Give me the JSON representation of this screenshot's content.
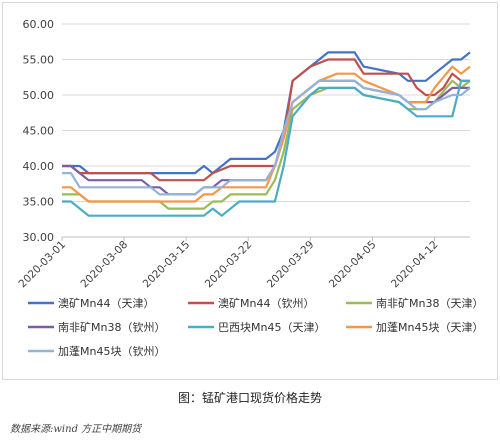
{
  "caption": "图：锰矿港口现货价格走势",
  "source": "数据来源:wind  方正中期期货",
  "chart_data": {
    "type": "line",
    "title": "",
    "xlabel": "",
    "ylabel": "",
    "ylim": [
      30,
      60
    ],
    "yticks": [
      "30.00",
      "35.00",
      "40.00",
      "45.00",
      "50.00",
      "55.00",
      "60.00"
    ],
    "x_start": "2020-03-01",
    "x_end": "2020-04-16",
    "x_ticks": [
      "2020-03-01",
      "2020-03-08",
      "2020-03-15",
      "2020-03-22",
      "2020-03-29",
      "2020-04-05",
      "2020-04-12"
    ],
    "grid": true,
    "legend_position": "bottom",
    "series": [
      {
        "name": "澳矿Mn44（天津）",
        "color": "#4472c4",
        "points": [
          [
            "2020-03-01",
            40
          ],
          [
            "2020-03-03",
            40
          ],
          [
            "2020-03-04",
            39
          ],
          [
            "2020-03-16",
            39
          ],
          [
            "2020-03-17",
            40
          ],
          [
            "2020-03-18",
            39
          ],
          [
            "2020-03-19",
            40
          ],
          [
            "2020-03-20",
            41
          ],
          [
            "2020-03-24",
            41
          ],
          [
            "2020-03-25",
            42
          ],
          [
            "2020-03-26",
            45
          ],
          [
            "2020-03-27",
            52
          ],
          [
            "2020-03-29",
            54
          ],
          [
            "2020-03-31",
            56
          ],
          [
            "2020-04-03",
            56
          ],
          [
            "2020-04-04",
            54
          ],
          [
            "2020-04-08",
            53
          ],
          [
            "2020-04-09",
            52
          ],
          [
            "2020-04-11",
            52
          ],
          [
            "2020-04-12",
            53
          ],
          [
            "2020-04-14",
            55
          ],
          [
            "2020-04-15",
            55
          ],
          [
            "2020-04-16",
            56
          ]
        ]
      },
      {
        "name": "澳矿Mn44（钦州）",
        "color": "#c0504d",
        "points": [
          [
            "2020-03-01",
            40
          ],
          [
            "2020-03-02",
            40
          ],
          [
            "2020-03-03",
            39
          ],
          [
            "2020-03-11",
            39
          ],
          [
            "2020-03-12",
            38
          ],
          [
            "2020-03-17",
            38
          ],
          [
            "2020-03-18",
            39
          ],
          [
            "2020-03-20",
            40
          ],
          [
            "2020-03-25",
            40
          ],
          [
            "2020-03-26",
            44
          ],
          [
            "2020-03-27",
            52
          ],
          [
            "2020-03-29",
            54
          ],
          [
            "2020-03-31",
            55
          ],
          [
            "2020-04-03",
            55
          ],
          [
            "2020-04-04",
            53
          ],
          [
            "2020-04-09",
            53
          ],
          [
            "2020-04-10",
            51
          ],
          [
            "2020-04-11",
            50
          ],
          [
            "2020-04-12",
            50
          ],
          [
            "2020-04-13",
            51
          ],
          [
            "2020-04-14",
            53
          ],
          [
            "2020-04-15",
            52
          ],
          [
            "2020-04-16",
            52
          ]
        ]
      },
      {
        "name": "南非矿Mn38（天津）",
        "color": "#9bbb59",
        "points": [
          [
            "2020-03-01",
            36
          ],
          [
            "2020-03-03",
            36
          ],
          [
            "2020-03-04",
            35
          ],
          [
            "2020-03-12",
            35
          ],
          [
            "2020-03-13",
            34
          ],
          [
            "2020-03-17",
            34
          ],
          [
            "2020-03-18",
            35
          ],
          [
            "2020-03-19",
            35
          ],
          [
            "2020-03-20",
            36
          ],
          [
            "2020-03-24",
            36
          ],
          [
            "2020-03-25",
            38
          ],
          [
            "2020-03-26",
            42
          ],
          [
            "2020-03-27",
            48
          ],
          [
            "2020-03-29",
            50
          ],
          [
            "2020-03-31",
            51
          ],
          [
            "2020-04-03",
            51
          ],
          [
            "2020-04-04",
            50
          ],
          [
            "2020-04-08",
            49
          ],
          [
            "2020-04-09",
            48
          ],
          [
            "2020-04-11",
            48
          ],
          [
            "2020-04-12",
            49
          ],
          [
            "2020-04-14",
            52
          ],
          [
            "2020-04-15",
            51
          ],
          [
            "2020-04-16",
            52
          ]
        ]
      },
      {
        "name": "南非矿Mn38（钦州）",
        "color": "#7b5ea7",
        "points": [
          [
            "2020-03-01",
            40
          ],
          [
            "2020-03-02",
            40
          ],
          [
            "2020-03-03",
            39
          ],
          [
            "2020-03-04",
            38
          ],
          [
            "2020-03-10",
            38
          ],
          [
            "2020-03-11",
            37
          ],
          [
            "2020-03-12",
            37
          ],
          [
            "2020-03-13",
            36
          ],
          [
            "2020-03-16",
            36
          ],
          [
            "2020-03-17",
            37
          ],
          [
            "2020-03-18",
            37
          ],
          [
            "2020-03-19",
            38
          ],
          [
            "2020-03-24",
            38
          ],
          [
            "2020-03-25",
            40
          ],
          [
            "2020-03-26",
            44
          ],
          [
            "2020-03-27",
            49
          ],
          [
            "2020-03-29",
            51
          ],
          [
            "2020-03-30",
            52
          ],
          [
            "2020-04-03",
            52
          ],
          [
            "2020-04-04",
            51
          ],
          [
            "2020-04-08",
            50
          ],
          [
            "2020-04-09",
            49
          ],
          [
            "2020-04-11",
            49
          ],
          [
            "2020-04-12",
            49
          ],
          [
            "2020-04-14",
            51
          ],
          [
            "2020-04-15",
            51
          ],
          [
            "2020-04-16",
            51
          ]
        ]
      },
      {
        "name": "巴西块Mn45（天津）",
        "color": "#4bacc6",
        "points": [
          [
            "2020-03-01",
            35
          ],
          [
            "2020-03-02",
            35
          ],
          [
            "2020-03-04",
            33
          ],
          [
            "2020-03-17",
            33
          ],
          [
            "2020-03-18",
            34
          ],
          [
            "2020-03-19",
            33
          ],
          [
            "2020-03-20",
            34
          ],
          [
            "2020-03-21",
            35
          ],
          [
            "2020-03-25",
            35
          ],
          [
            "2020-03-26",
            40
          ],
          [
            "2020-03-27",
            47
          ],
          [
            "2020-03-29",
            50
          ],
          [
            "2020-03-30",
            51
          ],
          [
            "2020-04-03",
            51
          ],
          [
            "2020-04-04",
            50
          ],
          [
            "2020-04-08",
            49
          ],
          [
            "2020-04-09",
            48
          ],
          [
            "2020-04-10",
            47
          ],
          [
            "2020-04-14",
            47
          ],
          [
            "2020-04-15",
            52
          ],
          [
            "2020-04-16",
            52
          ]
        ]
      },
      {
        "name": "加蓬Mn45块（天津）",
        "color": "#f79646",
        "points": [
          [
            "2020-03-01",
            37
          ],
          [
            "2020-03-02",
            37
          ],
          [
            "2020-03-03",
            36
          ],
          [
            "2020-03-04",
            35
          ],
          [
            "2020-03-16",
            35
          ],
          [
            "2020-03-17",
            36
          ],
          [
            "2020-03-18",
            36
          ],
          [
            "2020-03-19",
            37
          ],
          [
            "2020-03-24",
            37
          ],
          [
            "2020-03-25",
            40
          ],
          [
            "2020-03-26",
            44
          ],
          [
            "2020-03-27",
            49
          ],
          [
            "2020-03-29",
            51
          ],
          [
            "2020-03-30",
            52
          ],
          [
            "2020-04-01",
            53
          ],
          [
            "2020-04-03",
            53
          ],
          [
            "2020-04-04",
            52
          ],
          [
            "2020-04-08",
            50
          ],
          [
            "2020-04-09",
            49
          ],
          [
            "2020-04-11",
            49
          ],
          [
            "2020-04-12",
            51
          ],
          [
            "2020-04-14",
            54
          ],
          [
            "2020-04-15",
            53
          ],
          [
            "2020-04-16",
            54
          ]
        ]
      },
      {
        "name": "加蓬Mn45块（钦州）",
        "color": "#95b3d7",
        "points": [
          [
            "2020-03-01",
            39
          ],
          [
            "2020-03-02",
            39
          ],
          [
            "2020-03-03",
            37
          ],
          [
            "2020-03-11",
            37
          ],
          [
            "2020-03-12",
            36
          ],
          [
            "2020-03-16",
            36
          ],
          [
            "2020-03-17",
            37
          ],
          [
            "2020-03-19",
            37
          ],
          [
            "2020-03-20",
            38
          ],
          [
            "2020-03-24",
            38
          ],
          [
            "2020-03-25",
            40
          ],
          [
            "2020-03-26",
            45
          ],
          [
            "2020-03-27",
            49
          ],
          [
            "2020-03-29",
            51
          ],
          [
            "2020-03-30",
            52
          ],
          [
            "2020-04-03",
            52
          ],
          [
            "2020-04-04",
            51
          ],
          [
            "2020-04-08",
            50
          ],
          [
            "2020-04-09",
            49
          ],
          [
            "2020-04-10",
            48
          ],
          [
            "2020-04-11",
            48
          ],
          [
            "2020-04-12",
            49
          ],
          [
            "2020-04-14",
            50
          ],
          [
            "2020-04-15",
            50
          ],
          [
            "2020-04-16",
            51
          ]
        ]
      }
    ]
  }
}
